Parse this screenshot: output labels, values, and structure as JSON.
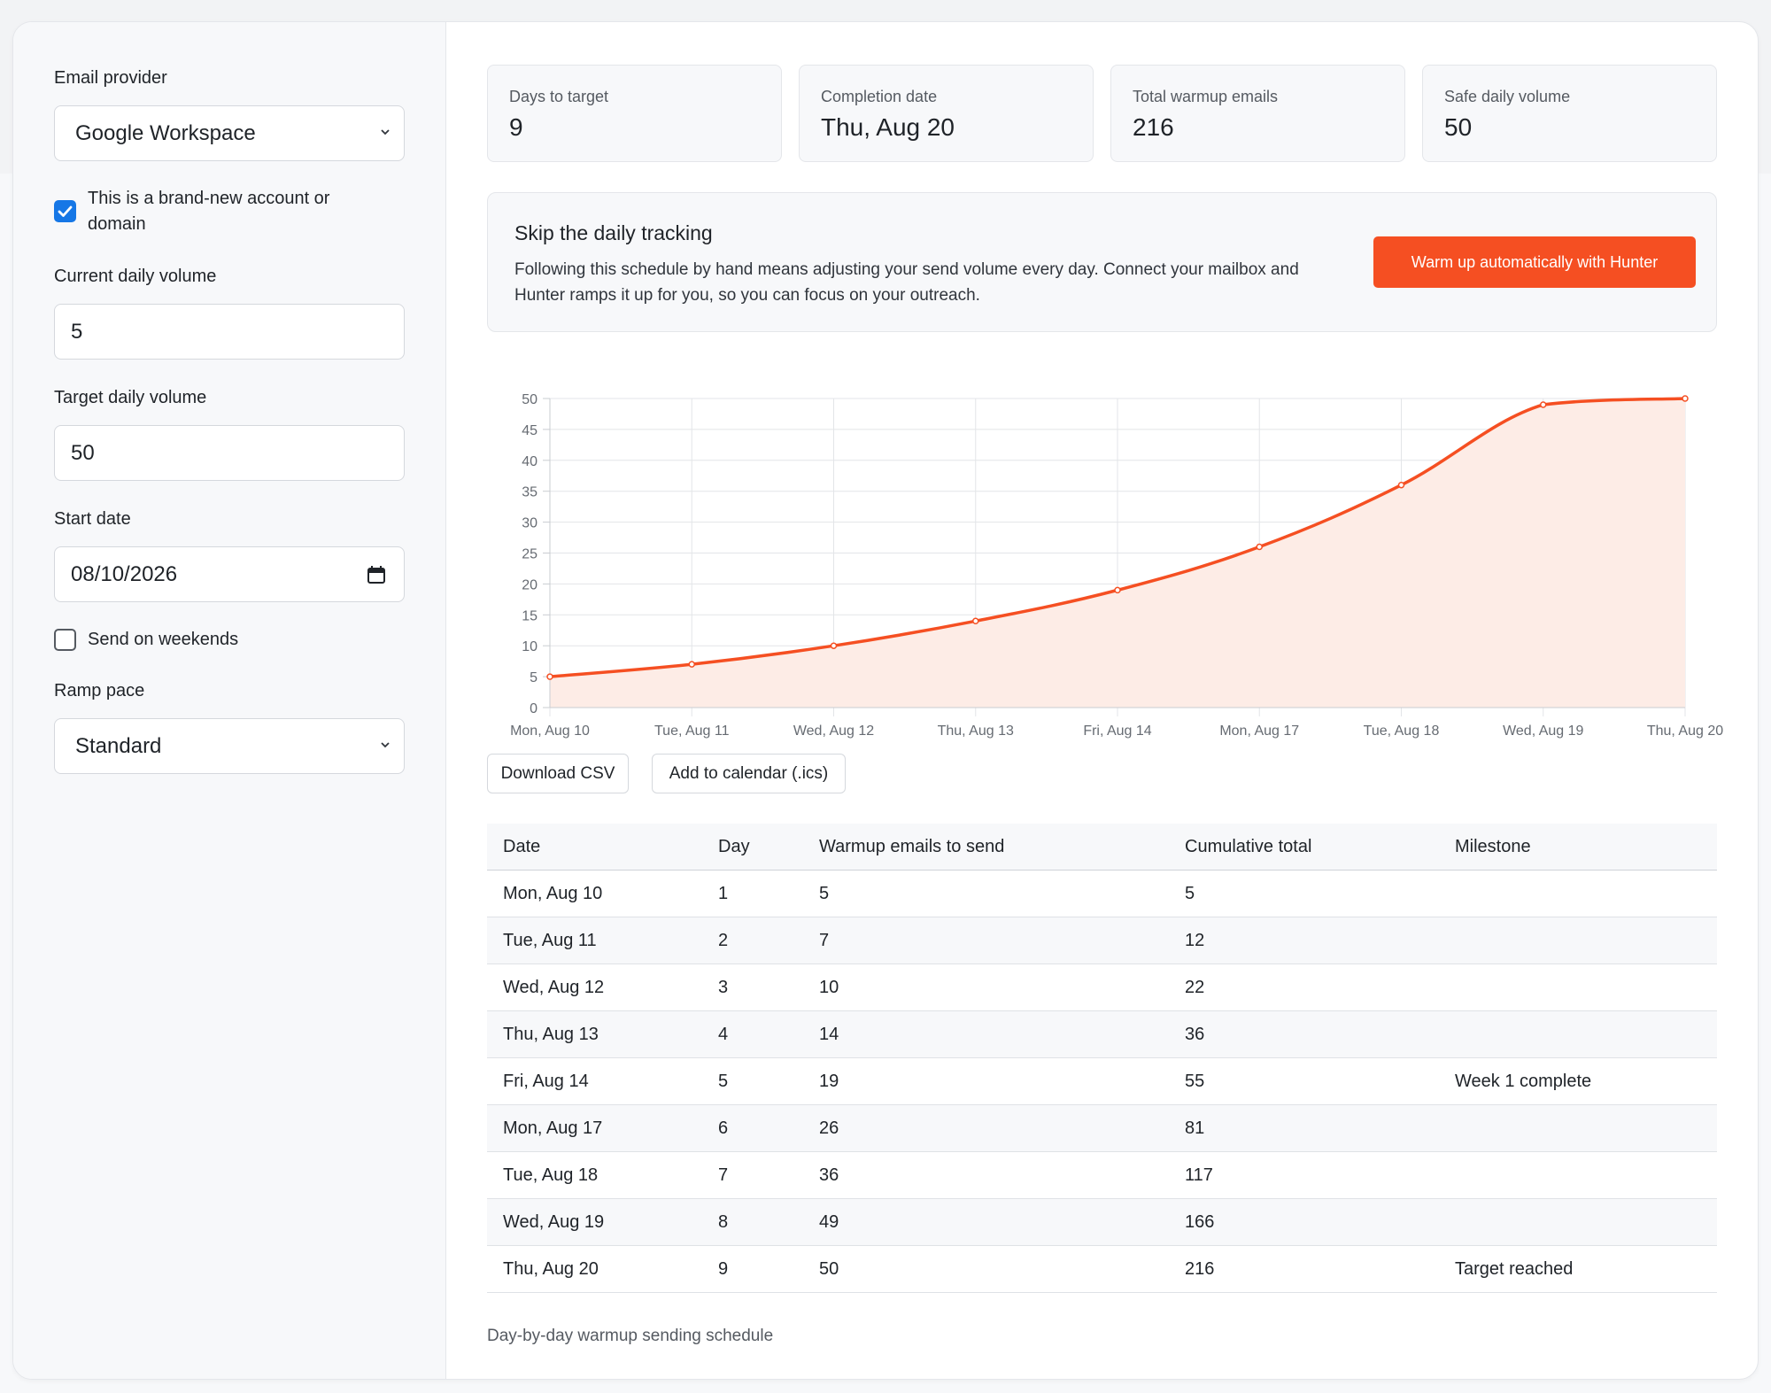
{
  "sidebar": {
    "provider_label": "Email provider",
    "provider_value": "Google Workspace",
    "brand_new_label": "This is a brand-new account or domain",
    "brand_new_checked": true,
    "current_volume_label": "Current daily volume",
    "current_volume_value": "5",
    "target_volume_label": "Target daily volume",
    "target_volume_value": "50",
    "start_date_label": "Start date",
    "start_date_value": "08/10/2026",
    "weekends_label": "Send on weekends",
    "weekends_checked": false,
    "ramp_label": "Ramp pace",
    "ramp_value": "Standard"
  },
  "stats": [
    {
      "label": "Days to target",
      "value": "9"
    },
    {
      "label": "Completion date",
      "value": "Thu, Aug 20"
    },
    {
      "label": "Total warmup emails",
      "value": "216"
    },
    {
      "label": "Safe daily volume",
      "value": "50"
    }
  ],
  "promo": {
    "title": "Skip the daily tracking",
    "text": "Following this schedule by hand means adjusting your send volume every day. Connect your mailbox and Hunter ramps it up for you, so you can focus on your outreach.",
    "button": "Warm up automatically with Hunter"
  },
  "colors": {
    "accent": "#f54f22",
    "area_fill": "#fdece6",
    "checkbox": "#1677e6"
  },
  "chart_data": {
    "type": "area",
    "categories": [
      "Mon, Aug 10",
      "Tue, Aug 11",
      "Wed, Aug 12",
      "Thu, Aug 13",
      "Fri, Aug 14",
      "Mon, Aug 17",
      "Tue, Aug 18",
      "Wed, Aug 19",
      "Thu, Aug 20"
    ],
    "values": [
      5,
      7,
      10,
      14,
      19,
      26,
      36,
      49,
      50
    ],
    "yticks": [
      "0",
      "5",
      "10",
      "15",
      "20",
      "25",
      "30",
      "35",
      "40",
      "45",
      "50"
    ],
    "ylim": [
      0,
      50
    ],
    "grid": true,
    "xlabel": "",
    "ylabel": ""
  },
  "actions": {
    "csv": "Download CSV",
    "calendar": "Add to calendar (.ics)"
  },
  "table": {
    "headers": [
      "Date",
      "Day",
      "Warmup emails to send",
      "Cumulative total",
      "Milestone"
    ],
    "rows": [
      [
        "Mon, Aug 10",
        "1",
        "5",
        "5",
        ""
      ],
      [
        "Tue, Aug 11",
        "2",
        "7",
        "12",
        ""
      ],
      [
        "Wed, Aug 12",
        "3",
        "10",
        "22",
        ""
      ],
      [
        "Thu, Aug 13",
        "4",
        "14",
        "36",
        ""
      ],
      [
        "Fri, Aug 14",
        "5",
        "19",
        "55",
        "Week 1 complete"
      ],
      [
        "Mon, Aug 17",
        "6",
        "26",
        "81",
        ""
      ],
      [
        "Tue, Aug 18",
        "7",
        "36",
        "117",
        ""
      ],
      [
        "Wed, Aug 19",
        "8",
        "49",
        "166",
        ""
      ],
      [
        "Thu, Aug 20",
        "9",
        "50",
        "216",
        "Target reached"
      ]
    ],
    "caption": "Day-by-day warmup sending schedule"
  }
}
